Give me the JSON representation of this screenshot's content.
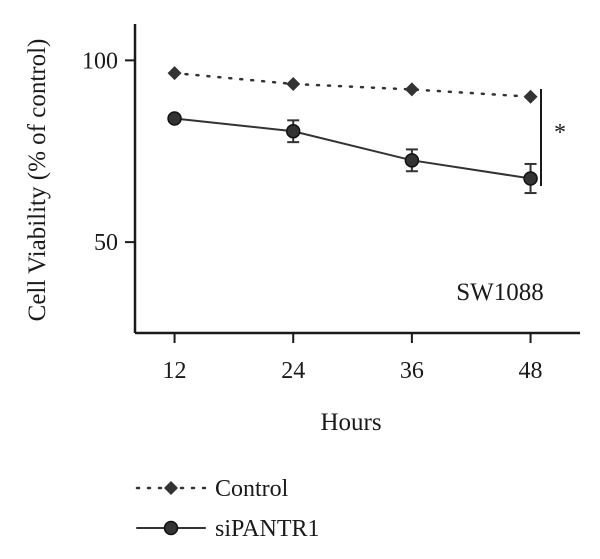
{
  "chart_data": {
    "type": "line",
    "xlabel": "Hours",
    "ylabel": "Cell Viability (% of control)",
    "x": [
      12,
      24,
      36,
      48
    ],
    "xticks": [
      "12",
      "24",
      "36",
      "48"
    ],
    "yticks": [
      "100",
      "50"
    ],
    "ytick_values": [
      100,
      50
    ],
    "ylim": [
      25,
      110
    ],
    "xlim": [
      8,
      53
    ],
    "annotation": "SW1088",
    "significance": "*",
    "series": [
      {
        "name": "Control",
        "values": [
          96.5,
          93.5,
          92,
          90
        ],
        "errors": [
          0,
          0,
          0,
          0
        ],
        "marker": "diamond",
        "line": "dotted",
        "color": "#333333"
      },
      {
        "name": "siPANTR1",
        "values": [
          84,
          80.5,
          72.5,
          67.5
        ],
        "errors": [
          0,
          3,
          3,
          4
        ],
        "marker": "circle",
        "line": "solid",
        "color": "#333333"
      }
    ],
    "legend_position": "bottom"
  }
}
